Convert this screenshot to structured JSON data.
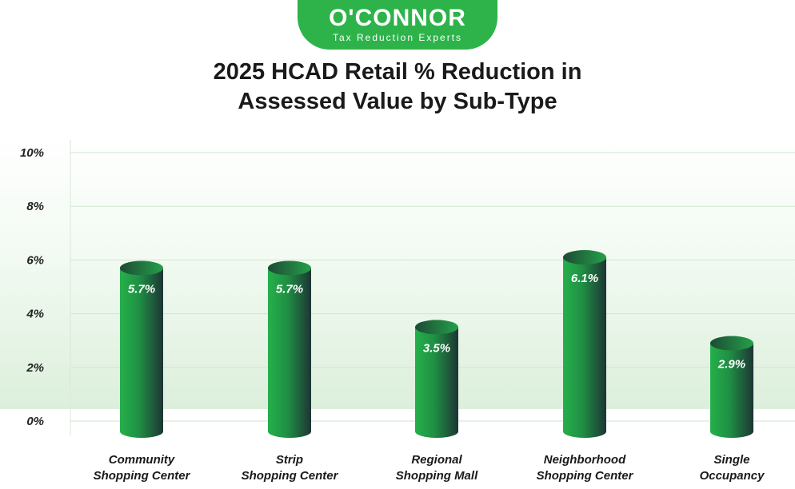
{
  "logo": {
    "name": "O'CONNOR",
    "tagline": "Tax Reduction Experts"
  },
  "chart_data": {
    "type": "bar",
    "title": "2025 HCAD Retail % Reduction in Assessed Value by Sub-Type",
    "title_lines": [
      "2025 HCAD Retail % Reduction in",
      "Assessed Value by Sub-Type"
    ],
    "categories": [
      "Community Shopping Center",
      "Strip Shopping Center",
      "Regional Shopping Mall",
      "Neighborhood Shopping Center",
      "Single Occupancy"
    ],
    "category_lines": [
      [
        "Community",
        "Shopping Center"
      ],
      [
        "Strip",
        "Shopping Center"
      ],
      [
        "Regional",
        "Shopping Mall"
      ],
      [
        "Neighborhood",
        "Shopping Center"
      ],
      [
        "Single",
        "Occupancy"
      ]
    ],
    "values": [
      5.7,
      5.7,
      3.5,
      6.1,
      2.9
    ],
    "data_labels": [
      "5.7%",
      "5.7%",
      "3.5%",
      "6.1%",
      "2.9%"
    ],
    "ylim": [
      0,
      10
    ],
    "yticks": [
      "0%",
      "2%",
      "4%",
      "6%",
      "8%",
      "10%"
    ],
    "xlabel": "",
    "ylabel": "",
    "grid": true,
    "colors": {
      "bar_light": "#25b04b",
      "bar_dark": "#1d3535",
      "brand": "#2db34a"
    }
  }
}
